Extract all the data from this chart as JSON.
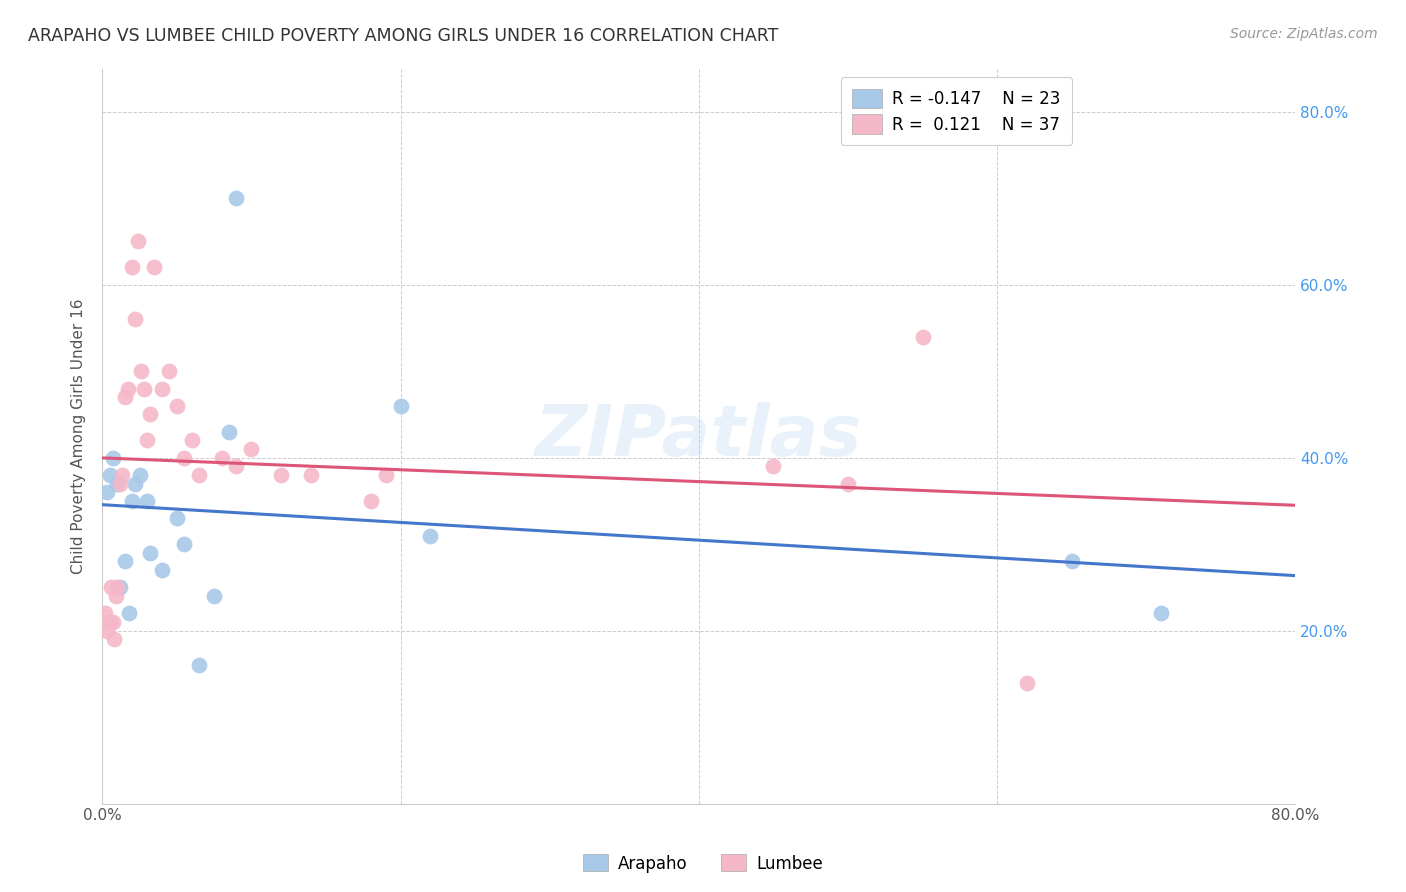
{
  "title": "ARAPAHO VS LUMBEE CHILD POVERTY AMONG GIRLS UNDER 16 CORRELATION CHART",
  "source": "Source: ZipAtlas.com",
  "ylabel": "Child Poverty Among Girls Under 16",
  "xlim": [
    0,
    0.8
  ],
  "ylim": [
    0,
    0.85
  ],
  "legend_r_blue": "-0.147",
  "legend_n_blue": "23",
  "legend_r_pink": " 0.121",
  "legend_n_pink": "37",
  "arapaho_color": "#a8c8e8",
  "lumbee_color": "#f4b8c8",
  "line_blue": "#4477cc",
  "line_pink": "#dd5577",
  "watermark": "ZIPatlas",
  "arapaho_x": [
    0.003,
    0.005,
    0.007,
    0.01,
    0.012,
    0.015,
    0.018,
    0.02,
    0.022,
    0.025,
    0.03,
    0.032,
    0.04,
    0.05,
    0.055,
    0.065,
    0.075,
    0.085,
    0.09,
    0.2,
    0.22,
    0.65,
    0.71
  ],
  "arapaho_y": [
    0.36,
    0.38,
    0.4,
    0.37,
    0.25,
    0.28,
    0.22,
    0.35,
    0.37,
    0.38,
    0.35,
    0.29,
    0.27,
    0.33,
    0.3,
    0.16,
    0.24,
    0.43,
    0.7,
    0.46,
    0.31,
    0.28,
    0.22
  ],
  "lumbee_x": [
    0.002,
    0.003,
    0.005,
    0.006,
    0.007,
    0.008,
    0.009,
    0.01,
    0.012,
    0.013,
    0.015,
    0.017,
    0.02,
    0.022,
    0.024,
    0.026,
    0.028,
    0.03,
    0.032,
    0.035,
    0.04,
    0.045,
    0.05,
    0.055,
    0.06,
    0.065,
    0.08,
    0.09,
    0.1,
    0.12,
    0.14,
    0.18,
    0.19,
    0.45,
    0.5,
    0.55,
    0.62
  ],
  "lumbee_y": [
    0.22,
    0.2,
    0.21,
    0.25,
    0.21,
    0.19,
    0.24,
    0.25,
    0.37,
    0.38,
    0.47,
    0.48,
    0.62,
    0.56,
    0.65,
    0.5,
    0.48,
    0.42,
    0.45,
    0.62,
    0.48,
    0.5,
    0.46,
    0.4,
    0.42,
    0.38,
    0.4,
    0.39,
    0.41,
    0.38,
    0.38,
    0.35,
    0.38,
    0.39,
    0.37,
    0.54,
    0.14
  ]
}
